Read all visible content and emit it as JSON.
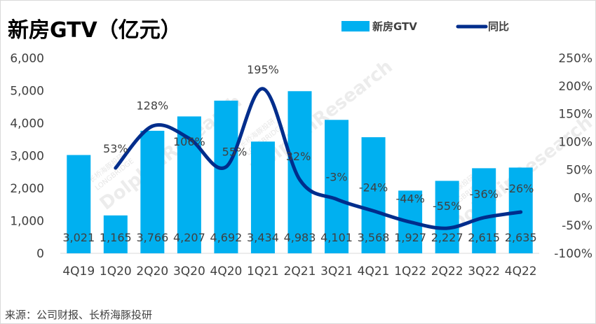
{
  "title": "新房GTV（亿元）",
  "source": "来源：公司财报、长桥海豚投研",
  "watermark": {
    "brand": "DolphinResearch",
    "sub": "LONGBRIDGE",
    "cn": "长桥海豚投研"
  },
  "colors": {
    "bar": "#00b0f0",
    "line": "#002d8c",
    "text": "#404040"
  },
  "chart_data": {
    "type": "bar",
    "categories": [
      "4Q19",
      "1Q20",
      "2Q20",
      "3Q20",
      "4Q20",
      "1Q21",
      "2Q21",
      "3Q21",
      "4Q21",
      "1Q22",
      "2Q22",
      "3Q22",
      "4Q22"
    ],
    "series": [
      {
        "name": "新房GTV",
        "type": "bar",
        "axis": "left",
        "values": [
          3021,
          1165,
          3766,
          4207,
          4692,
          3434,
          4983,
          4101,
          3568,
          1927,
          2227,
          2615,
          2635
        ],
        "labels": [
          "3,021",
          "1,165",
          "3,766",
          "4,207",
          "4,692",
          "3,434",
          "4,983",
          "4,101",
          "3,568",
          "1,927",
          "2,227",
          "2,615",
          "2,635"
        ]
      },
      {
        "name": "同比",
        "type": "line",
        "axis": "right",
        "values": [
          null,
          53,
          128,
          106,
          55,
          195,
          32,
          -3,
          -24,
          -44,
          -55,
          -36,
          -26
        ],
        "labels": [
          "",
          "53%",
          "128%",
          "106%",
          "55%",
          "195%",
          "32%",
          "-3%",
          "-24%",
          "-44%",
          "-55%",
          "-36%",
          "-26%"
        ]
      }
    ],
    "y_left": {
      "min": 0,
      "max": 6000,
      "ticks": [
        0,
        1000,
        2000,
        3000,
        4000,
        5000,
        6000
      ],
      "tick_labels": [
        "0",
        "1,000",
        "2,000",
        "3,000",
        "4,000",
        "5,000",
        "6,000"
      ]
    },
    "y_right": {
      "min": -100,
      "max": 250,
      "ticks": [
        -100,
        -50,
        0,
        50,
        100,
        150,
        200,
        250
      ],
      "tick_labels": [
        "-100%",
        "-50%",
        "0%",
        "50%",
        "100%",
        "150%",
        "200%",
        "250%"
      ]
    },
    "legend": {
      "position": "top-right",
      "items": [
        "新房GTV",
        "同比"
      ]
    },
    "grid": false
  }
}
